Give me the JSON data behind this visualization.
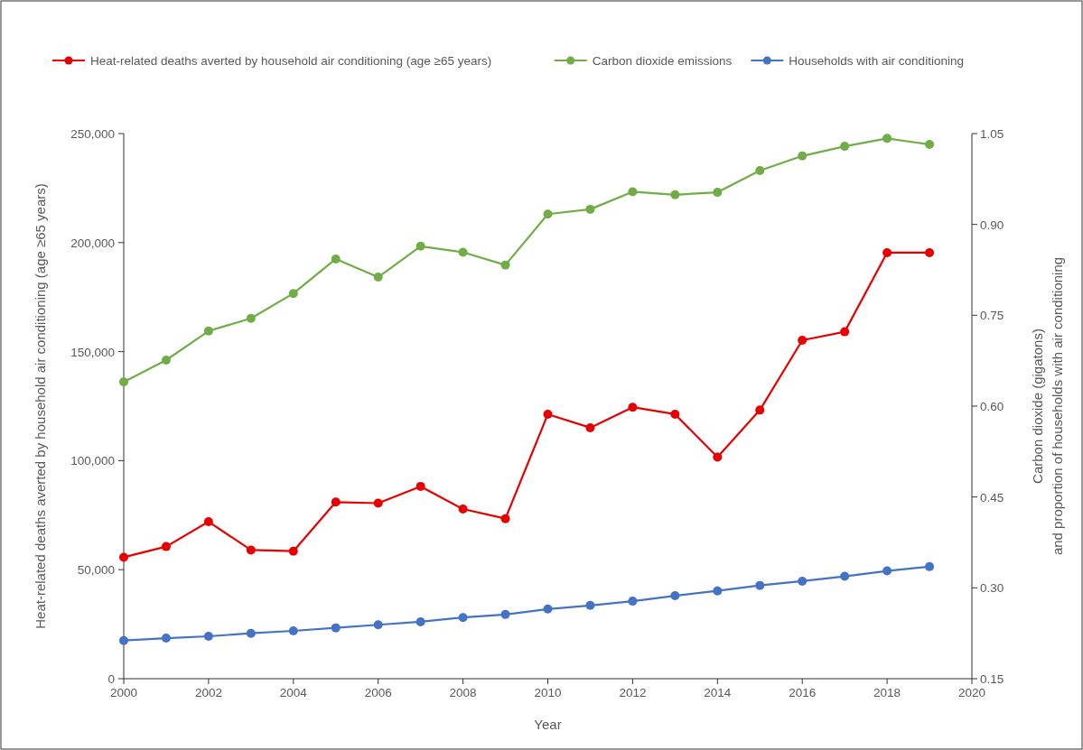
{
  "chart_data": {
    "type": "line",
    "xlabel": "Year",
    "ylabel": "Heat-related deaths averted by household air conditioning (age ≥65 years)",
    "y2label": "Carbon dioxide (gigatons)\nand proportion of households with air conditioning",
    "x": [
      2000,
      2001,
      2002,
      2003,
      2004,
      2005,
      2006,
      2007,
      2008,
      2009,
      2010,
      2011,
      2012,
      2013,
      2014,
      2015,
      2016,
      2017,
      2018,
      2019
    ],
    "series": [
      {
        "name": "Heat-related deaths averted by household air conditioning (age ≥65 years)",
        "color": "#e60000",
        "values": [
          55700,
          60600,
          72000,
          59000,
          58500,
          81000,
          80500,
          88200,
          77800,
          73400,
          121300,
          115100,
          124500,
          121300,
          101600,
          123200,
          155200,
          159100,
          195400,
          195400
        ]
      },
      {
        "name": "Carbon dioxide emissions",
        "color": "#70ad47",
        "axis": "y2",
        "values": [
          0.64,
          0.676,
          0.724,
          0.745,
          0.786,
          0.843,
          0.813,
          0.864,
          0.854,
          0.833,
          0.917,
          0.925,
          0.954,
          0.949,
          0.953,
          0.989,
          1.013,
          1.029,
          1.042,
          1.032
        ]
      },
      {
        "name": "Households with air conditioning",
        "color": "#4472c4",
        "axis": "y2",
        "values": [
          0.213,
          0.217,
          0.22,
          0.225,
          0.229,
          0.234,
          0.239,
          0.244,
          0.251,
          0.256,
          0.265,
          0.271,
          0.278,
          0.287,
          0.295,
          0.304,
          0.311,
          0.319,
          0.328,
          0.335
        ]
      }
    ],
    "xlim": [
      2000,
      2020
    ],
    "xticks": [
      2000,
      2002,
      2004,
      2006,
      2008,
      2010,
      2012,
      2014,
      2016,
      2018,
      2020
    ],
    "ylim": [
      0,
      250000
    ],
    "yticks": [
      0,
      {
        "value": 50000,
        "label": "50,000"
      },
      {
        "value": 100000,
        "label": "100,000"
      },
      {
        "value": 150000,
        "label": "150,000"
      },
      {
        "value": 200000,
        "label": "200,000"
      },
      {
        "value": 250000,
        "label": "250,000"
      }
    ],
    "y2lim": [
      0.15,
      1.05
    ],
    "y2ticks": [
      0.15,
      {
        "value": 0.3,
        "label": "0.30"
      },
      0.45,
      {
        "value": 0.6,
        "label": "0.60"
      },
      0.75,
      {
        "value": 0.9,
        "label": "0.90"
      },
      1.05
    ],
    "grid": false,
    "legend": "top",
    "marker": "circle",
    "line_style": "solid"
  }
}
